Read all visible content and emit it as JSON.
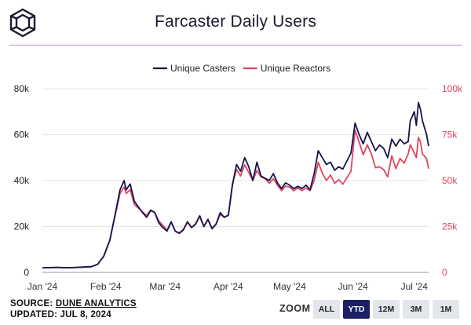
{
  "header": {
    "title": "Farcaster Daily Users",
    "logo_icon": "cube-logo-icon"
  },
  "footer": {
    "source_prefix": "SOURCE: ",
    "source_name": "DUNE ANALYTICS",
    "updated": "UPDATED: JUL 8, 2024"
  },
  "zoom": {
    "label": "ZOOM",
    "options": [
      "ALL",
      "YTD",
      "12M",
      "3M",
      "1M"
    ],
    "selected": "YTD"
  },
  "chart_data": {
    "type": "line",
    "title": "Farcaster Daily Users",
    "legend_placement": "top",
    "grid": true,
    "x_ticks": [
      "Jan '24",
      "Feb '24",
      "Mar '24",
      "Apr '24",
      "May '24",
      "Jun '24",
      "Jul '24"
    ],
    "y_left": {
      "range": [
        0,
        80000
      ],
      "ticks": [
        "0",
        "20k",
        "40k",
        "60k",
        "80k"
      ],
      "color": "#222222"
    },
    "y_right": {
      "range": [
        0,
        100000
      ],
      "ticks": [
        "0",
        "25k",
        "50k",
        "75k",
        "100k"
      ],
      "color": "#e0455f"
    },
    "series": [
      {
        "name": "Unique Casters",
        "color": "#141450",
        "axis": "left",
        "points": [
          [
            "2024-01-01",
            2000
          ],
          [
            "2024-01-08",
            2200
          ],
          [
            "2024-01-14",
            2000
          ],
          [
            "2024-01-20",
            2300
          ],
          [
            "2024-01-25",
            2500
          ],
          [
            "2024-01-28",
            3500
          ],
          [
            "2024-01-31",
            7000
          ],
          [
            "2024-02-03",
            14000
          ],
          [
            "2024-02-06",
            27000
          ],
          [
            "2024-02-08",
            36000
          ],
          [
            "2024-02-10",
            40000
          ],
          [
            "2024-02-11",
            36000
          ],
          [
            "2024-02-13",
            38500
          ],
          [
            "2024-02-15",
            31000
          ],
          [
            "2024-02-17",
            28500
          ],
          [
            "2024-02-19",
            26000
          ],
          [
            "2024-02-21",
            24000
          ],
          [
            "2024-02-23",
            27000
          ],
          [
            "2024-02-25",
            26000
          ],
          [
            "2024-02-27",
            21500
          ],
          [
            "2024-02-29",
            19500
          ],
          [
            "2024-03-02",
            18000
          ],
          [
            "2024-03-04",
            22000
          ],
          [
            "2024-03-06",
            18000
          ],
          [
            "2024-03-08",
            17000
          ],
          [
            "2024-03-10",
            18500
          ],
          [
            "2024-03-12",
            22000
          ],
          [
            "2024-03-14",
            19500
          ],
          [
            "2024-03-16",
            21000
          ],
          [
            "2024-03-18",
            24500
          ],
          [
            "2024-03-20",
            20000
          ],
          [
            "2024-03-22",
            23000
          ],
          [
            "2024-03-24",
            19000
          ],
          [
            "2024-03-26",
            21000
          ],
          [
            "2024-03-28",
            26000
          ],
          [
            "2024-03-30",
            24000
          ],
          [
            "2024-04-01",
            25000
          ],
          [
            "2024-04-03",
            38000
          ],
          [
            "2024-04-05",
            47000
          ],
          [
            "2024-04-07",
            44000
          ],
          [
            "2024-04-09",
            50000
          ],
          [
            "2024-04-11",
            46000
          ],
          [
            "2024-04-13",
            40000
          ],
          [
            "2024-04-15",
            48000
          ],
          [
            "2024-04-17",
            42000
          ],
          [
            "2024-04-19",
            41000
          ],
          [
            "2024-04-21",
            40000
          ],
          [
            "2024-04-23",
            43000
          ],
          [
            "2024-04-25",
            39000
          ],
          [
            "2024-04-27",
            36500
          ],
          [
            "2024-04-29",
            39000
          ],
          [
            "2024-05-01",
            38000
          ],
          [
            "2024-05-03",
            36500
          ],
          [
            "2024-05-05",
            37500
          ],
          [
            "2024-05-07",
            36500
          ],
          [
            "2024-05-09",
            38000
          ],
          [
            "2024-05-11",
            36000
          ],
          [
            "2024-05-13",
            43000
          ],
          [
            "2024-05-15",
            53000
          ],
          [
            "2024-05-17",
            50000
          ],
          [
            "2024-05-19",
            47000
          ],
          [
            "2024-05-21",
            48000
          ],
          [
            "2024-05-23",
            44500
          ],
          [
            "2024-05-25",
            46000
          ],
          [
            "2024-05-27",
            45000
          ],
          [
            "2024-05-29",
            48500
          ],
          [
            "2024-05-31",
            52000
          ],
          [
            "2024-06-02",
            65000
          ],
          [
            "2024-06-04",
            60000
          ],
          [
            "2024-06-06",
            56000
          ],
          [
            "2024-06-08",
            61000
          ],
          [
            "2024-06-10",
            57000
          ],
          [
            "2024-06-12",
            53000
          ],
          [
            "2024-06-14",
            55500
          ],
          [
            "2024-06-16",
            54000
          ],
          [
            "2024-06-18",
            50000
          ],
          [
            "2024-06-20",
            58000
          ],
          [
            "2024-06-22",
            55000
          ],
          [
            "2024-06-24",
            58000
          ],
          [
            "2024-06-26",
            56000
          ],
          [
            "2024-06-28",
            57000
          ],
          [
            "2024-06-29",
            66000
          ],
          [
            "2024-07-01",
            70000
          ],
          [
            "2024-07-02",
            64000
          ],
          [
            "2024-07-03",
            74000
          ],
          [
            "2024-07-04",
            71000
          ],
          [
            "2024-07-05",
            66000
          ],
          [
            "2024-07-07",
            60000
          ],
          [
            "2024-07-08",
            55000
          ]
        ]
      },
      {
        "name": "Unique Reactors",
        "color": "#e0455f",
        "axis": "right",
        "points": [
          [
            "2024-01-01",
            2500
          ],
          [
            "2024-01-08",
            2700
          ],
          [
            "2024-01-14",
            2500
          ],
          [
            "2024-01-20",
            2800
          ],
          [
            "2024-01-25",
            3100
          ],
          [
            "2024-01-28",
            4400
          ],
          [
            "2024-01-31",
            8750
          ],
          [
            "2024-02-03",
            17500
          ],
          [
            "2024-02-06",
            33000
          ],
          [
            "2024-02-08",
            43000
          ],
          [
            "2024-02-10",
            46500
          ],
          [
            "2024-02-11",
            43000
          ],
          [
            "2024-02-13",
            45000
          ],
          [
            "2024-02-15",
            37000
          ],
          [
            "2024-02-17",
            35000
          ],
          [
            "2024-02-19",
            33000
          ],
          [
            "2024-02-21",
            31000
          ],
          [
            "2024-02-23",
            34000
          ],
          [
            "2024-02-25",
            32500
          ],
          [
            "2024-02-27",
            28000
          ],
          [
            "2024-02-29",
            25500
          ],
          [
            "2024-03-02",
            23000
          ],
          [
            "2024-03-04",
            27500
          ],
          [
            "2024-03-06",
            22500
          ],
          [
            "2024-03-08",
            21500
          ],
          [
            "2024-03-10",
            23500
          ],
          [
            "2024-03-12",
            27500
          ],
          [
            "2024-03-14",
            24500
          ],
          [
            "2024-03-16",
            26500
          ],
          [
            "2024-03-18",
            31000
          ],
          [
            "2024-03-20",
            25000
          ],
          [
            "2024-03-22",
            29000
          ],
          [
            "2024-03-24",
            24000
          ],
          [
            "2024-03-26",
            26500
          ],
          [
            "2024-03-28",
            31500
          ],
          [
            "2024-03-30",
            30000
          ],
          [
            "2024-04-01",
            31000
          ],
          [
            "2024-04-03",
            48500
          ],
          [
            "2024-04-05",
            56000
          ],
          [
            "2024-04-07",
            52500
          ],
          [
            "2024-04-09",
            58500
          ],
          [
            "2024-04-11",
            54500
          ],
          [
            "2024-04-13",
            50000
          ],
          [
            "2024-04-15",
            55500
          ],
          [
            "2024-04-17",
            52000
          ],
          [
            "2024-04-19",
            51000
          ],
          [
            "2024-04-21",
            48500
          ],
          [
            "2024-04-23",
            51000
          ],
          [
            "2024-04-25",
            47500
          ],
          [
            "2024-04-27",
            44500
          ],
          [
            "2024-04-29",
            47000
          ],
          [
            "2024-05-01",
            46500
          ],
          [
            "2024-05-03",
            44500
          ],
          [
            "2024-05-05",
            46000
          ],
          [
            "2024-05-07",
            44500
          ],
          [
            "2024-05-09",
            46000
          ],
          [
            "2024-05-11",
            44500
          ],
          [
            "2024-05-13",
            50000
          ],
          [
            "2024-05-15",
            60000
          ],
          [
            "2024-05-17",
            54000
          ],
          [
            "2024-05-19",
            50000
          ],
          [
            "2024-05-21",
            53000
          ],
          [
            "2024-05-23",
            48500
          ],
          [
            "2024-05-25",
            50500
          ],
          [
            "2024-05-27",
            48000
          ],
          [
            "2024-05-29",
            51500
          ],
          [
            "2024-05-31",
            55000
          ],
          [
            "2024-06-02",
            77500
          ],
          [
            "2024-06-04",
            71000
          ],
          [
            "2024-06-06",
            64000
          ],
          [
            "2024-06-08",
            69500
          ],
          [
            "2024-06-10",
            64500
          ],
          [
            "2024-06-12",
            57000
          ],
          [
            "2024-06-14",
            57500
          ],
          [
            "2024-06-16",
            56000
          ],
          [
            "2024-06-18",
            52000
          ],
          [
            "2024-06-20",
            63500
          ],
          [
            "2024-06-22",
            56500
          ],
          [
            "2024-06-24",
            62000
          ],
          [
            "2024-06-26",
            59500
          ],
          [
            "2024-06-28",
            64500
          ],
          [
            "2024-06-29",
            69500
          ],
          [
            "2024-07-01",
            65000
          ],
          [
            "2024-07-02",
            62500
          ],
          [
            "2024-07-03",
            73500
          ],
          [
            "2024-07-04",
            71000
          ],
          [
            "2024-07-05",
            64500
          ],
          [
            "2024-07-07",
            62000
          ],
          [
            "2024-07-08",
            56500
          ]
        ]
      }
    ]
  }
}
